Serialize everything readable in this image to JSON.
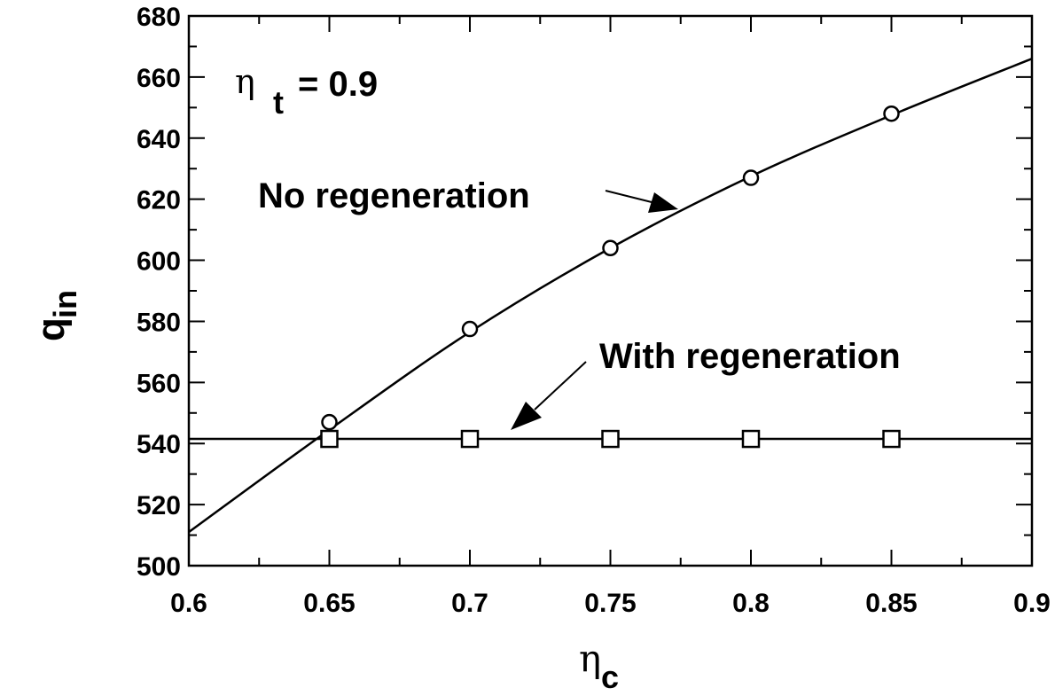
{
  "chart_data": {
    "type": "line",
    "x": [
      0.65,
      0.7,
      0.75,
      0.8,
      0.85
    ],
    "xlim": [
      0.6,
      0.9
    ],
    "ylim": [
      500,
      680
    ],
    "xticks": [
      0.6,
      0.65,
      0.7,
      0.75,
      0.8,
      0.85,
      0.9
    ],
    "xtick_labels": [
      "0.6",
      "0.65",
      "0.7",
      "0.75",
      "0.8",
      "0.85",
      "0.9"
    ],
    "yticks": [
      500,
      520,
      540,
      560,
      580,
      600,
      620,
      640,
      660,
      680
    ],
    "ytick_labels": [
      "500",
      "520",
      "540",
      "560",
      "580",
      "600",
      "620",
      "640",
      "660",
      "680"
    ],
    "xlabel": {
      "symbol": "η",
      "subscript": "c"
    },
    "ylabel": {
      "symbol": "q",
      "subscript": "in"
    },
    "series": [
      {
        "name": "No regeneration",
        "marker": "circle",
        "values": [
          547,
          577.5,
          604,
          627,
          648
        ],
        "curve_x": [
          0.6,
          0.65,
          0.7,
          0.75,
          0.8,
          0.85,
          0.9
        ],
        "curve_y": [
          511,
          544.5,
          576.5,
          604,
          627.5,
          647.5,
          666
        ]
      },
      {
        "name": "With regeneration",
        "marker": "square",
        "values": [
          541.5,
          541.5,
          541.5,
          541.5,
          541.5
        ],
        "curve_x": [
          0.6,
          0.9
        ],
        "curve_y": [
          541.5,
          541.5
        ]
      }
    ],
    "annotations": {
      "eta_t": {
        "symbol": "η",
        "subscript": "t",
        "text": "= 0.9"
      },
      "no_regen_label": "No regeneration",
      "with_regen_label": "With regeneration"
    }
  }
}
